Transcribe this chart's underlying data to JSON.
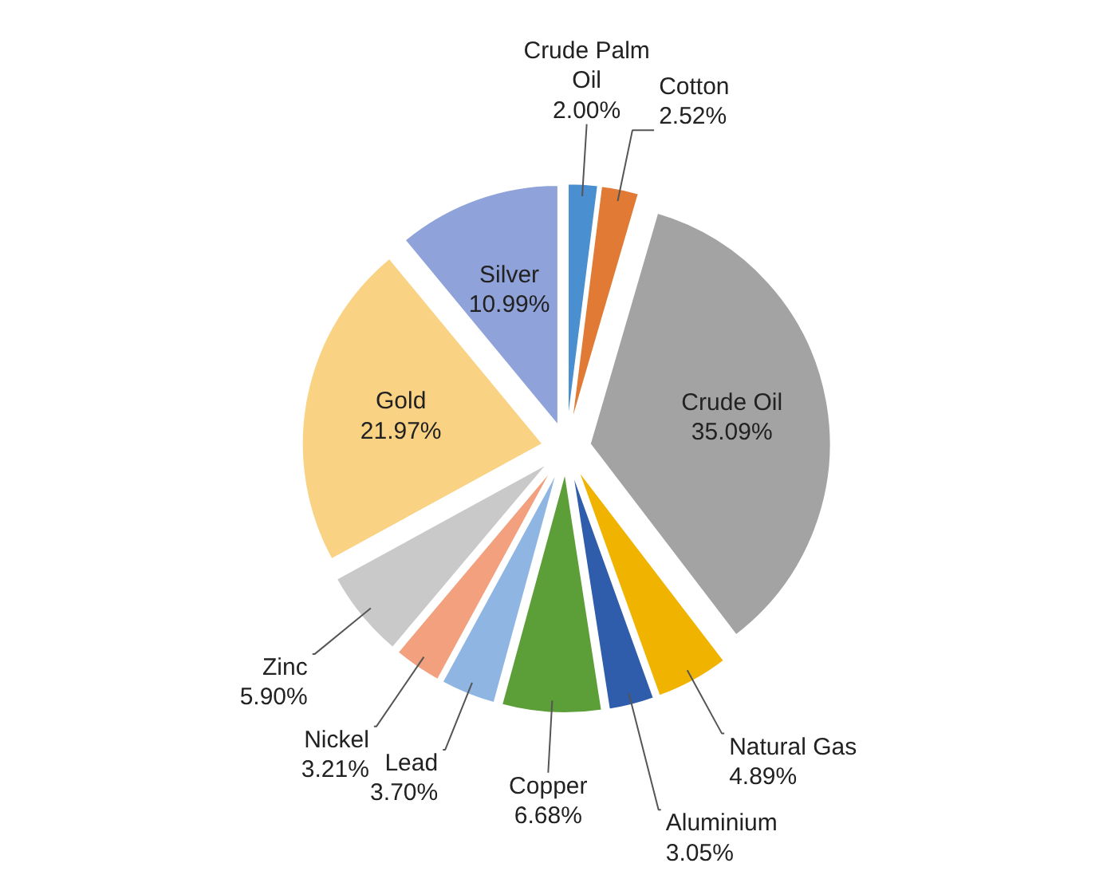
{
  "chart_data": {
    "type": "pie",
    "categories": [
      "Crude Palm Oil",
      "Cotton",
      "Crude Oil",
      "Natural Gas",
      "Aluminium",
      "Copper",
      "Lead",
      "Nickel",
      "Zinc",
      "Gold",
      "Silver"
    ],
    "values": [
      2.0,
      2.52,
      35.09,
      4.89,
      3.05,
      6.68,
      3.7,
      3.21,
      5.9,
      21.97,
      10.99
    ],
    "value_labels": [
      "2.00%",
      "2.52%",
      "35.09%",
      "4.89%",
      "3.05%",
      "6.68%",
      "3.70%",
      "3.21%",
      "5.90%",
      "21.97%",
      "10.99%"
    ],
    "colors": [
      "#4a8fd0",
      "#e07a35",
      "#a3a3a3",
      "#f0b400",
      "#2f5cab",
      "#5c9e38",
      "#8fb5e3",
      "#f2a07e",
      "#c9c9c9",
      "#f9d283",
      "#8fa2d9"
    ]
  }
}
